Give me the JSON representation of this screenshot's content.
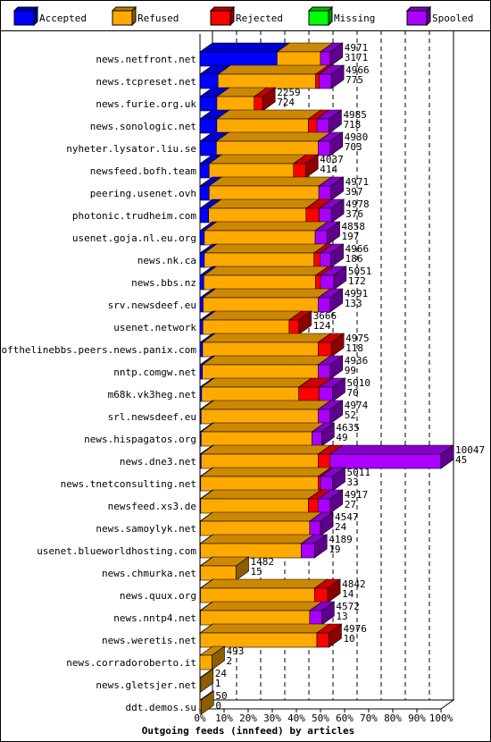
{
  "chart_data": {
    "type": "bar",
    "orientation": "horizontal",
    "stacked": true,
    "title": "",
    "xlabel": "Outgoing feeds (innfeed) by articles",
    "ylabel": "",
    "xlim": [
      0,
      100
    ],
    "x_tick_labels": [
      "0%",
      "10%",
      "20%",
      "30%",
      "40%",
      "50%",
      "60%",
      "70%",
      "80%",
      "90%",
      "100%"
    ],
    "grid": true,
    "legend_position": "top",
    "legend": [
      {
        "name": "Accepted",
        "color": "#0000ff"
      },
      {
        "name": "Refused",
        "color": "#ffaa00"
      },
      {
        "name": "Rejected",
        "color": "#ff0000"
      },
      {
        "name": "Missing",
        "color": "#00ff00"
      },
      {
        "name": "Spooled",
        "color": "#aa00ff"
      }
    ],
    "rows": [
      {
        "label": "news.netfront.net",
        "offered": "4971",
        "accepted_count": "3171",
        "segments": {
          "Accepted": 32.0,
          "Refused": 18.0,
          "Rejected": 0.0,
          "Missing": 0,
          "Spooled": 4.0
        }
      },
      {
        "label": "news.tcpreset.net",
        "offered": "4966",
        "accepted_count": "775",
        "segments": {
          "Accepted": 7.5,
          "Refused": 40.5,
          "Rejected": 1.5,
          "Missing": 0,
          "Spooled": 5.0
        }
      },
      {
        "label": "news.furie.org.uk",
        "offered": "2259",
        "accepted_count": "724",
        "segments": {
          "Accepted": 7.0,
          "Refused": 15.5,
          "Rejected": 3.5,
          "Missing": 0,
          "Spooled": 0.0
        }
      },
      {
        "label": "news.sonologic.net",
        "offered": "4985",
        "accepted_count": "718",
        "segments": {
          "Accepted": 7.0,
          "Refused": 38.0,
          "Rejected": 3.5,
          "Missing": 0,
          "Spooled": 5.0
        }
      },
      {
        "label": "nyheter.lysator.liu.se",
        "offered": "4930",
        "accepted_count": "703",
        "segments": {
          "Accepted": 6.8,
          "Refused": 42.2,
          "Rejected": 0.0,
          "Missing": 0,
          "Spooled": 5.0
        }
      },
      {
        "label": "newsfeed.bofh.team",
        "offered": "4037",
        "accepted_count": "414",
        "segments": {
          "Accepted": 3.8,
          "Refused": 35.0,
          "Rejected": 5.0,
          "Missing": 0,
          "Spooled": 0.0
        }
      },
      {
        "label": "peering.usenet.ovh",
        "offered": "4971",
        "accepted_count": "397",
        "segments": {
          "Accepted": 3.8,
          "Refused": 45.5,
          "Rejected": 0.0,
          "Missing": 0,
          "Spooled": 5.0
        }
      },
      {
        "label": "photonic.trudheim.com",
        "offered": "4978",
        "accepted_count": "376",
        "segments": {
          "Accepted": 3.6,
          "Refused": 40.4,
          "Rejected": 5.5,
          "Missing": 0,
          "Spooled": 5.0
        }
      },
      {
        "label": "usenet.goja.nl.eu.org",
        "offered": "4858",
        "accepted_count": "197",
        "segments": {
          "Accepted": 1.8,
          "Refused": 46.0,
          "Rejected": 0.0,
          "Missing": 0,
          "Spooled": 5.0
        }
      },
      {
        "label": "news.nk.ca",
        "offered": "4966",
        "accepted_count": "186",
        "segments": {
          "Accepted": 1.8,
          "Refused": 45.5,
          "Rejected": 2.5,
          "Missing": 0,
          "Spooled": 4.5
        }
      },
      {
        "label": "news.bbs.nz",
        "offered": "5051",
        "accepted_count": "172",
        "segments": {
          "Accepted": 1.6,
          "Refused": 46.4,
          "Rejected": 2.0,
          "Missing": 0,
          "Spooled": 5.5
        }
      },
      {
        "label": "srv.newsdeef.eu",
        "offered": "4991",
        "accepted_count": "133",
        "segments": {
          "Accepted": 1.3,
          "Refused": 47.7,
          "Rejected": 0.0,
          "Missing": 0,
          "Spooled": 5.0
        }
      },
      {
        "label": "usenet.network",
        "offered": "3666",
        "accepted_count": "124",
        "segments": {
          "Accepted": 1.2,
          "Refused": 35.8,
          "Rejected": 4.0,
          "Missing": 0,
          "Spooled": 0.0
        }
      },
      {
        "label": "endofthelinebbs.peers.news.panix.com",
        "offered": "4975",
        "accepted_count": "118",
        "segments": {
          "Accepted": 1.1,
          "Refused": 47.9,
          "Rejected": 5.5,
          "Missing": 0,
          "Spooled": 0.0
        }
      },
      {
        "label": "nntp.comgw.net",
        "offered": "4936",
        "accepted_count": "99",
        "segments": {
          "Accepted": 1.0,
          "Refused": 48.0,
          "Rejected": 0.0,
          "Missing": 0,
          "Spooled": 5.0
        }
      },
      {
        "label": "m68k.vk3heg.net",
        "offered": "5010",
        "accepted_count": "70",
        "segments": {
          "Accepted": 0.7,
          "Refused": 40.3,
          "Rejected": 8.5,
          "Missing": 0,
          "Spooled": 5.5
        }
      },
      {
        "label": "srl.newsdeef.eu",
        "offered": "4974",
        "accepted_count": "52",
        "segments": {
          "Accepted": 0.5,
          "Refused": 48.5,
          "Rejected": 0.0,
          "Missing": 0,
          "Spooled": 5.0
        }
      },
      {
        "label": "news.hispagatos.org",
        "offered": "4635",
        "accepted_count": "49",
        "segments": {
          "Accepted": 0.5,
          "Refused": 46.0,
          "Rejected": 0.0,
          "Missing": 0,
          "Spooled": 4.0
        }
      },
      {
        "label": "news.dne3.net",
        "offered": "10047",
        "accepted_count": "45",
        "segments": {
          "Accepted": 0.5,
          "Refused": 48.5,
          "Rejected": 5.0,
          "Missing": 0,
          "Spooled": 46.0
        }
      },
      {
        "label": "news.tnetconsulting.net",
        "offered": "5011",
        "accepted_count": "33",
        "segments": {
          "Accepted": 0.3,
          "Refused": 48.7,
          "Rejected": 1.0,
          "Missing": 0,
          "Spooled": 5.0
        }
      },
      {
        "label": "newsfeed.xs3.de",
        "offered": "4917",
        "accepted_count": "27",
        "segments": {
          "Accepted": 0.3,
          "Refused": 44.7,
          "Rejected": 4.0,
          "Missing": 0,
          "Spooled": 5.0
        }
      },
      {
        "label": "news.samoylyk.net",
        "offered": "4547",
        "accepted_count": "24",
        "segments": {
          "Accepted": 0.2,
          "Refused": 45.3,
          "Rejected": 0.0,
          "Missing": 0,
          "Spooled": 4.5
        }
      },
      {
        "label": "usenet.blueworldhosting.com",
        "offered": "4189",
        "accepted_count": "19",
        "segments": {
          "Accepted": 0.2,
          "Refused": 41.8,
          "Rejected": 0.0,
          "Missing": 0,
          "Spooled": 5.5
        }
      },
      {
        "label": "news.chmurka.net",
        "offered": "1482",
        "accepted_count": "15",
        "segments": {
          "Accepted": 0.2,
          "Refused": 14.8,
          "Rejected": 0.0,
          "Missing": 0,
          "Spooled": 0.0
        }
      },
      {
        "label": "news.quux.org",
        "offered": "4842",
        "accepted_count": "14",
        "segments": {
          "Accepted": 0.2,
          "Refused": 47.3,
          "Rejected": 5.5,
          "Missing": 0,
          "Spooled": 0.0
        }
      },
      {
        "label": "news.nntp4.net",
        "offered": "4572",
        "accepted_count": "13",
        "segments": {
          "Accepted": 0.2,
          "Refused": 45.3,
          "Rejected": 0.0,
          "Missing": 0,
          "Spooled": 5.0
        }
      },
      {
        "label": "news.weretis.net",
        "offered": "4976",
        "accepted_count": "10",
        "segments": {
          "Accepted": 0.1,
          "Refused": 48.4,
          "Rejected": 5.0,
          "Missing": 0,
          "Spooled": 0.0
        }
      },
      {
        "label": "news.corradoroberto.it",
        "offered": "493",
        "accepted_count": "2",
        "segments": {
          "Accepted": 0.0,
          "Refused": 5.0,
          "Rejected": 0.0,
          "Missing": 0,
          "Spooled": 0.0
        }
      },
      {
        "label": "news.gletsjer.net",
        "offered": "24",
        "accepted_count": "1",
        "segments": {
          "Accepted": 0.0,
          "Refused": 0.3,
          "Rejected": 0.0,
          "Missing": 0,
          "Spooled": 0.0
        }
      },
      {
        "label": "ddt.demos.su",
        "offered": "50",
        "accepted_count": "0",
        "segments": {
          "Accepted": 0.0,
          "Refused": 0.5,
          "Rejected": 0.0,
          "Missing": 0,
          "Spooled": 0.0
        }
      }
    ]
  }
}
